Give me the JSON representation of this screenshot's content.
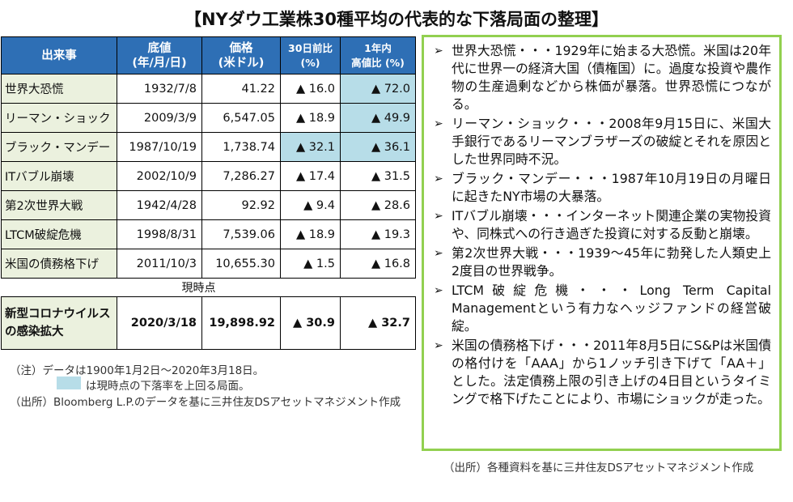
{
  "title": "【NYダウ工業株30種平均の代表的な下落局面の整理】",
  "table": {
    "headers": [
      {
        "l1": "出来事",
        "l2": ""
      },
      {
        "l1": "底値",
        "l2": "(年/月/日)"
      },
      {
        "l1": "価格",
        "l2": "(米ドル)"
      },
      {
        "l1": "30日前比",
        "l2": "(%)"
      },
      {
        "l1": "1年内",
        "l2": "高値比 (%)"
      }
    ],
    "rows": [
      {
        "event": "世界大恐慌",
        "date": "1932/7/8",
        "price": "41.22",
        "d30": "▲ 16.0",
        "y1": "▲ 72.0"
      },
      {
        "event": "リーマン・ショック",
        "date": "2009/3/9",
        "price": "6,547.05",
        "d30": "▲ 18.9",
        "y1": "▲ 49.9"
      },
      {
        "event": "ブラック・マンデー",
        "date": "1987/10/19",
        "price": "1,738.74",
        "d30": "▲ 32.1",
        "y1": "▲ 36.1"
      },
      {
        "event": "ITバブル崩壊",
        "date": "2002/10/9",
        "price": "7,286.27",
        "d30": "▲ 17.4",
        "y1": "▲ 31.5"
      },
      {
        "event": "第2次世界大戦",
        "date": "1942/4/28",
        "price": "92.92",
        "d30": "▲ 9.4",
        "y1": "▲ 28.6"
      },
      {
        "event": "LTCM破綻危機",
        "date": "1998/8/31",
        "price": "7,539.06",
        "d30": "▲ 18.9",
        "y1": "▲ 19.3"
      },
      {
        "event": "米国の債務格下げ",
        "date": "2011/10/3",
        "price": "10,655.30",
        "d30": "▲ 1.5",
        "y1": "▲ 16.8"
      }
    ],
    "current_label": "現時点",
    "current": {
      "event": "新型コロナウイルスの感染拡大",
      "date": "2020/3/18",
      "price": "19,898.92",
      "d30": "▲ 30.9",
      "y1": "▲ 32.7"
    }
  },
  "notes": {
    "note1": "（注）データは1900年1月2日～2020年3月18日。",
    "note2": "は現時点の下落率を上回る局面。",
    "source_left": "（出所）Bloomberg L.P.のデータを基に三井住友DSアセットマネジメント作成",
    "source_right": "（出所）各種資料を基に三井住友DSアセットマネジメント作成"
  },
  "bullets": [
    "世界大恐慌・・・1929年に始まる大恐慌。米国は20年代に世界一の経済大国（債権国）に。過度な投資や農作物の生産過剰などから株価が暴落。世界恐慌につながる。",
    "リーマン・ショック・・・2008年9月15日に、米国大手銀行であるリーマンブラザーズの破綻とそれを原因とした世界同時不況。",
    "ブラック・マンデー・・・1987年10月19日の月曜日に起きたNY市場の大暴落。",
    "ITバブル崩壊・・・インターネット関連企業の実物投資や、同株式への行き過ぎた投資に対する反動と崩壊。",
    "第2次世界大戦・・・1939～45年に勃発した人類史上2度目の世界戦争。",
    "LTCM破綻危機・・・Long Term Capital Managementという有力なヘッジファンドの経営破綻。",
    "米国の債務格下げ・・・2011年8月5日にS&Pは米国債の格付けを「AAA」から1ノッチ引き下げて「AA＋」とした。法定債務上限の引き上げの4日目というタイミングで格下げたことにより、市場にショックが走った。"
  ],
  "colors": {
    "header_blue": "#2e6fb5",
    "name_green": "#ebf1de",
    "highlight_blue": "#b7dde8",
    "panel_border": "#92d050"
  },
  "bullet_icon": "arrow-right-icon"
}
